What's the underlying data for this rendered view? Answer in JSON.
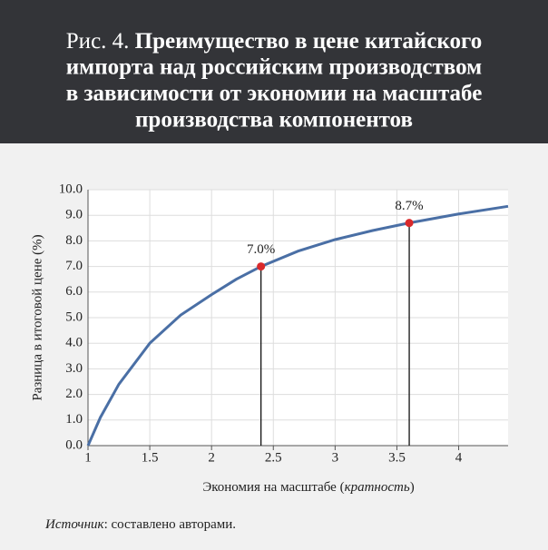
{
  "chart_data": {
    "type": "line",
    "figure_label": "Рис. 4.",
    "title_lines": [
      "Преимущество в цене китайского",
      "импорта над российским производством",
      "в зависимости от экономии на масштабе",
      "производства компонентов"
    ],
    "ylabel": "Разница в итоговой цене (%)",
    "xlabel_parts": [
      "Экономия на масштабе (",
      "кратность",
      ")"
    ],
    "source_parts": [
      "Источник",
      ": составлено авторами."
    ],
    "x": [
      1,
      1.1,
      1.25,
      1.5,
      1.75,
      2,
      2.2,
      2.4,
      2.7,
      3,
      3.3,
      3.6,
      4,
      4.4
    ],
    "series": [
      {
        "color": "#4a6fa5",
        "values": [
          0,
          1.1,
          2.4,
          4.0,
          5.1,
          5.9,
          6.5,
          7.0,
          7.6,
          8.05,
          8.4,
          8.7,
          9.05,
          9.35
        ]
      }
    ],
    "highlights": {
      "color": "#d9292b",
      "x": [
        2.4,
        3.6
      ],
      "values": [
        7.0,
        8.7
      ],
      "value_labels": [
        "7.0%",
        "8.7%"
      ]
    },
    "xlim": [
      1,
      4.4
    ],
    "xticks": [
      1,
      1.5,
      2,
      2.5,
      3,
      3.5,
      4
    ],
    "ylim": [
      0,
      10
    ],
    "yticks": [
      {
        "value": 0,
        "label": "0.0"
      },
      {
        "value": 1,
        "label": "1.0"
      },
      {
        "value": 2,
        "label": "2.0"
      },
      {
        "value": 3,
        "label": "3.0"
      },
      {
        "value": 4,
        "label": "4.0"
      },
      {
        "value": 5,
        "label": "5.0"
      },
      {
        "value": 6,
        "label": "6.0"
      },
      {
        "value": 7,
        "label": "7.0"
      },
      {
        "value": 8,
        "label": "8.0"
      },
      {
        "value": 9,
        "label": "9.0"
      },
      {
        "value": 10,
        "label": "10.0"
      }
    ],
    "grid": true
  }
}
